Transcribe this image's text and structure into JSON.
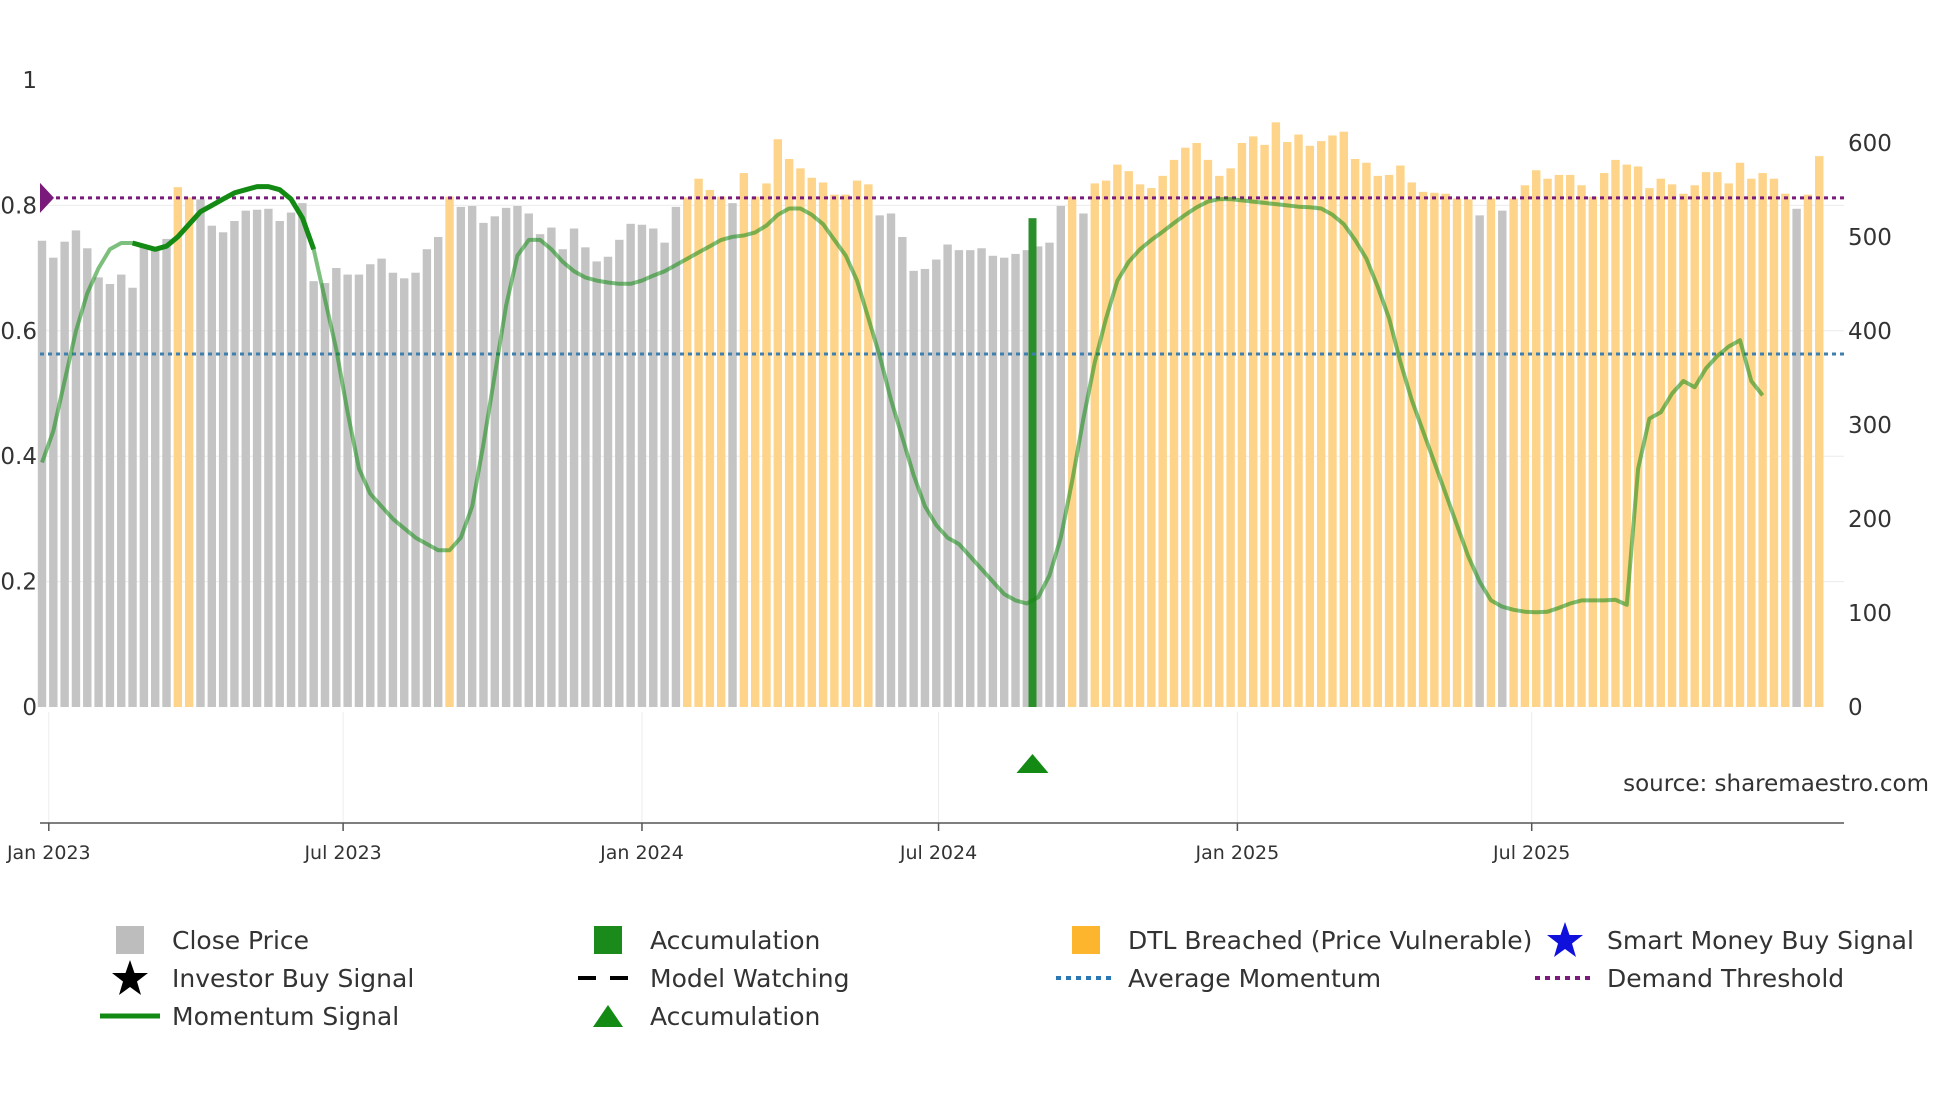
{
  "chart_data": {
    "type": "bar",
    "source_label": "source: sharemaestro.com",
    "x_ticks": [
      {
        "label": "Jan 2023",
        "t": 0.6
      },
      {
        "label": "Jul 2023",
        "t": 26.6
      },
      {
        "label": "Jan 2024",
        "t": 53.0
      },
      {
        "label": "Jul 2024",
        "t": 79.2
      },
      {
        "label": "Jan 2025",
        "t": 105.6
      },
      {
        "label": "Jul 2025",
        "t": 131.6
      }
    ],
    "left_axis": {
      "ticks": [
        "0",
        "0.2",
        "0.4",
        "0.6",
        "0.8",
        "1"
      ],
      "ylim": [
        0,
        1
      ]
    },
    "right_axis": {
      "ticks": [
        "0",
        "100",
        "200",
        "300",
        "400",
        "500",
        "600"
      ],
      "ylim": [
        0,
        667
      ]
    },
    "average_momentum": 0.563,
    "demand_threshold": 0.812,
    "close_price": [
      [
        496,
        "g"
      ],
      [
        478,
        "g"
      ],
      [
        495,
        "g"
      ],
      [
        507,
        "g"
      ],
      [
        488,
        "g"
      ],
      [
        457,
        "g"
      ],
      [
        450,
        "g"
      ],
      [
        460,
        "g"
      ],
      [
        446,
        "g"
      ],
      [
        490,
        "g"
      ],
      [
        487,
        "g"
      ],
      [
        498,
        "g"
      ],
      [
        553,
        "o"
      ],
      [
        542,
        "o"
      ],
      [
        540,
        "g"
      ],
      [
        512,
        "g"
      ],
      [
        505,
        "g"
      ],
      [
        517,
        "g"
      ],
      [
        528,
        "g"
      ],
      [
        529,
        "g"
      ],
      [
        530,
        "g"
      ],
      [
        517,
        "g"
      ],
      [
        526,
        "g"
      ],
      [
        536,
        "g"
      ],
      [
        453,
        "g"
      ],
      [
        451,
        "g"
      ],
      [
        467,
        "g"
      ],
      [
        460,
        "g"
      ],
      [
        460,
        "g"
      ],
      [
        471,
        "g"
      ],
      [
        477,
        "g"
      ],
      [
        462,
        "g"
      ],
      [
        456,
        "g"
      ],
      [
        462,
        "g"
      ],
      [
        487,
        "g"
      ],
      [
        500,
        "g"
      ],
      [
        543,
        "o"
      ],
      [
        532,
        "g"
      ],
      [
        533,
        "g"
      ],
      [
        515,
        "g"
      ],
      [
        522,
        "g"
      ],
      [
        531,
        "g"
      ],
      [
        533,
        "g"
      ],
      [
        525,
        "g"
      ],
      [
        503,
        "g"
      ],
      [
        510,
        "g"
      ],
      [
        487,
        "g"
      ],
      [
        509,
        "g"
      ],
      [
        489,
        "g"
      ],
      [
        474,
        "g"
      ],
      [
        479,
        "g"
      ],
      [
        497,
        "g"
      ],
      [
        514,
        "g"
      ],
      [
        513,
        "g"
      ],
      [
        509,
        "g"
      ],
      [
        494,
        "g"
      ],
      [
        532,
        "g"
      ],
      [
        542,
        "o"
      ],
      [
        562,
        "o"
      ],
      [
        550,
        "o"
      ],
      [
        543,
        "o"
      ],
      [
        536,
        "g"
      ],
      [
        568,
        "o"
      ],
      [
        543,
        "o"
      ],
      [
        557,
        "o"
      ],
      [
        604,
        "o"
      ],
      [
        583,
        "o"
      ],
      [
        573,
        "o"
      ],
      [
        563,
        "o"
      ],
      [
        558,
        "o"
      ],
      [
        545,
        "o"
      ],
      [
        545,
        "o"
      ],
      [
        560,
        "o"
      ],
      [
        556,
        "o"
      ],
      [
        523,
        "g"
      ],
      [
        525,
        "g"
      ],
      [
        500,
        "g"
      ],
      [
        464,
        "g"
      ],
      [
        466,
        "g"
      ],
      [
        476,
        "g"
      ],
      [
        492,
        "g"
      ],
      [
        486,
        "g"
      ],
      [
        486,
        "g"
      ],
      [
        488,
        "g"
      ],
      [
        480,
        "g"
      ],
      [
        478,
        "g"
      ],
      [
        482,
        "g"
      ],
      [
        486,
        "g"
      ],
      [
        490,
        "g"
      ],
      [
        494,
        "g"
      ],
      [
        533,
        "g"
      ],
      [
        543,
        "o"
      ],
      [
        525,
        "g"
      ],
      [
        557,
        "o"
      ],
      [
        560,
        "o"
      ],
      [
        577,
        "o"
      ],
      [
        570,
        "o"
      ],
      [
        556,
        "o"
      ],
      [
        552,
        "o"
      ],
      [
        565,
        "o"
      ],
      [
        582,
        "o"
      ],
      [
        595,
        "o"
      ],
      [
        600,
        "o"
      ],
      [
        582,
        "o"
      ],
      [
        565,
        "o"
      ],
      [
        573,
        "o"
      ],
      [
        600,
        "o"
      ],
      [
        607,
        "o"
      ],
      [
        598,
        "o"
      ],
      [
        622,
        "o"
      ],
      [
        601,
        "o"
      ],
      [
        609,
        "o"
      ],
      [
        597,
        "o"
      ],
      [
        602,
        "o"
      ],
      [
        608,
        "o"
      ],
      [
        612,
        "o"
      ],
      [
        583,
        "o"
      ],
      [
        579,
        "o"
      ],
      [
        565,
        "o"
      ],
      [
        566,
        "o"
      ],
      [
        576,
        "o"
      ],
      [
        558,
        "o"
      ],
      [
        548,
        "o"
      ],
      [
        547,
        "o"
      ],
      [
        546,
        "o"
      ],
      [
        541,
        "o"
      ],
      [
        540,
        "o"
      ],
      [
        523,
        "g"
      ],
      [
        541,
        "o"
      ],
      [
        528,
        "g"
      ],
      [
        541,
        "o"
      ],
      [
        555,
        "o"
      ],
      [
        571,
        "o"
      ],
      [
        562,
        "o"
      ],
      [
        566,
        "o"
      ],
      [
        566,
        "o"
      ],
      [
        555,
        "o"
      ],
      [
        543,
        "o"
      ],
      [
        568,
        "o"
      ],
      [
        582,
        "o"
      ],
      [
        577,
        "o"
      ],
      [
        575,
        "o"
      ],
      [
        552,
        "o"
      ],
      [
        562,
        "o"
      ],
      [
        556,
        "o"
      ],
      [
        546,
        "o"
      ],
      [
        555,
        "o"
      ],
      [
        569,
        "o"
      ],
      [
        569,
        "o"
      ],
      [
        557,
        "o"
      ],
      [
        579,
        "o"
      ],
      [
        562,
        "o"
      ],
      [
        568,
        "o"
      ],
      [
        562,
        "o"
      ],
      [
        546,
        "o"
      ],
      [
        530,
        "g"
      ],
      [
        545,
        "o"
      ],
      [
        586,
        "o"
      ]
    ],
    "accumulation_bar": {
      "t": 87.5,
      "value": 520
    },
    "momentum": [
      [
        0,
        0.39
      ],
      [
        1,
        0.44
      ],
      [
        2,
        0.52
      ],
      [
        3,
        0.6
      ],
      [
        4,
        0.66
      ],
      [
        5,
        0.7
      ],
      [
        6,
        0.73
      ],
      [
        7,
        0.74
      ],
      [
        8,
        0.74
      ],
      [
        9,
        0.735
      ],
      [
        10,
        0.73
      ],
      [
        11,
        0.735
      ],
      [
        12,
        0.75
      ],
      [
        13,
        0.77
      ],
      [
        14,
        0.79
      ],
      [
        15,
        0.8
      ],
      [
        16,
        0.81
      ],
      [
        17,
        0.82
      ],
      [
        18,
        0.825
      ],
      [
        19,
        0.83
      ],
      [
        20,
        0.83
      ],
      [
        21,
        0.825
      ],
      [
        22,
        0.81
      ],
      [
        23,
        0.78
      ],
      [
        24,
        0.73
      ],
      [
        25,
        0.65
      ],
      [
        26,
        0.57
      ],
      [
        27,
        0.47
      ],
      [
        28,
        0.38
      ],
      [
        29,
        0.34
      ],
      [
        30,
        0.32
      ],
      [
        31,
        0.3
      ],
      [
        32,
        0.285
      ],
      [
        33,
        0.27
      ],
      [
        34,
        0.26
      ],
      [
        35,
        0.25
      ],
      [
        36,
        0.25
      ],
      [
        37,
        0.27
      ],
      [
        38,
        0.32
      ],
      [
        39,
        0.42
      ],
      [
        40,
        0.53
      ],
      [
        41,
        0.64
      ],
      [
        42,
        0.72
      ],
      [
        43,
        0.745
      ],
      [
        44,
        0.745
      ],
      [
        45,
        0.73
      ],
      [
        46,
        0.71
      ],
      [
        47,
        0.695
      ],
      [
        48,
        0.685
      ],
      [
        49,
        0.68
      ],
      [
        50,
        0.677
      ],
      [
        51,
        0.675
      ],
      [
        52,
        0.675
      ],
      [
        53,
        0.68
      ],
      [
        54,
        0.688
      ],
      [
        55,
        0.695
      ],
      [
        56,
        0.705
      ],
      [
        57,
        0.715
      ],
      [
        58,
        0.725
      ],
      [
        59,
        0.735
      ],
      [
        60,
        0.745
      ],
      [
        61,
        0.75
      ],
      [
        62,
        0.752
      ],
      [
        63,
        0.757
      ],
      [
        64,
        0.768
      ],
      [
        65,
        0.785
      ],
      [
        66,
        0.795
      ],
      [
        67,
        0.795
      ],
      [
        68,
        0.785
      ],
      [
        69,
        0.77
      ],
      [
        70,
        0.745
      ],
      [
        71,
        0.72
      ],
      [
        72,
        0.68
      ],
      [
        73,
        0.62
      ],
      [
        74,
        0.56
      ],
      [
        75,
        0.49
      ],
      [
        76,
        0.43
      ],
      [
        77,
        0.37
      ],
      [
        78,
        0.32
      ],
      [
        79,
        0.29
      ],
      [
        80,
        0.27
      ],
      [
        81,
        0.26
      ],
      [
        82,
        0.24
      ],
      [
        83,
        0.22
      ],
      [
        84,
        0.2
      ],
      [
        85,
        0.18
      ],
      [
        86,
        0.17
      ],
      [
        87,
        0.165
      ],
      [
        88,
        0.175
      ],
      [
        89,
        0.21
      ],
      [
        90,
        0.27
      ],
      [
        91,
        0.36
      ],
      [
        92,
        0.46
      ],
      [
        93,
        0.55
      ],
      [
        94,
        0.62
      ],
      [
        95,
        0.68
      ],
      [
        96,
        0.71
      ],
      [
        97,
        0.73
      ],
      [
        98,
        0.745
      ],
      [
        99,
        0.758
      ],
      [
        100,
        0.772
      ],
      [
        101,
        0.785
      ],
      [
        102,
        0.797
      ],
      [
        103,
        0.806
      ],
      [
        104,
        0.81
      ],
      [
        105,
        0.81
      ],
      [
        106,
        0.808
      ],
      [
        107,
        0.806
      ],
      [
        108,
        0.804
      ],
      [
        109,
        0.802
      ],
      [
        110,
        0.8
      ],
      [
        111,
        0.798
      ],
      [
        112,
        0.797
      ],
      [
        113,
        0.795
      ],
      [
        114,
        0.785
      ],
      [
        115,
        0.77
      ],
      [
        116,
        0.745
      ],
      [
        117,
        0.715
      ],
      [
        118,
        0.67
      ],
      [
        119,
        0.62
      ],
      [
        120,
        0.55
      ],
      [
        121,
        0.49
      ],
      [
        122,
        0.44
      ],
      [
        123,
        0.39
      ],
      [
        124,
        0.34
      ],
      [
        125,
        0.29
      ],
      [
        126,
        0.24
      ],
      [
        127,
        0.2
      ],
      [
        128,
        0.17
      ],
      [
        129,
        0.16
      ],
      [
        130,
        0.155
      ],
      [
        131,
        0.152
      ],
      [
        132,
        0.151
      ],
      [
        133,
        0.152
      ],
      [
        134,
        0.158
      ],
      [
        135,
        0.165
      ],
      [
        136,
        0.17
      ],
      [
        137,
        0.17
      ],
      [
        138,
        0.17
      ],
      [
        139,
        0.171
      ],
      [
        140,
        0.163
      ],
      [
        141,
        0.38
      ],
      [
        142,
        0.46
      ],
      [
        143,
        0.47
      ],
      [
        144,
        0.5
      ],
      [
        145,
        0.52
      ],
      [
        146,
        0.51
      ],
      [
        147,
        0.54
      ],
      [
        148,
        0.56
      ],
      [
        149,
        0.575
      ],
      [
        150,
        0.585
      ],
      [
        151,
        0.52
      ],
      [
        152,
        0.497
      ]
    ],
    "momentum_highlight": [
      [
        8,
        24
      ]
    ],
    "accumulation_marker": {
      "t": 87.5
    },
    "threshold_marker_label": "Demand Threshold marker",
    "legend": [
      {
        "label": "Close Price",
        "symbol": "square",
        "color": "#bdbdbd"
      },
      {
        "label": "Investor Buy Signal",
        "symbol": "star",
        "color": "#000000"
      },
      {
        "label": "Momentum Signal",
        "symbol": "line",
        "color": "#138a13"
      },
      {
        "label": "Accumulation",
        "symbol": "square",
        "color": "#1a8a1a"
      },
      {
        "label": "Model Watching",
        "symbol": "dash",
        "color": "#000000"
      },
      {
        "label": "Accumulation",
        "symbol": "triangle",
        "color": "#138a13"
      },
      {
        "label": "DTL Breached (Price Vulnerable)",
        "symbol": "square",
        "color": "#fdb52e"
      },
      {
        "label": "Average Momentum",
        "symbol": "dots",
        "color": "#2a77b4"
      },
      {
        "label": "Smart Money Buy Signal",
        "symbol": "star",
        "color": "#1010dd"
      },
      {
        "label": "Demand Threshold",
        "symbol": "dots",
        "color": "#7a1a7a"
      }
    ],
    "colors": {
      "close": "#c4c4c4",
      "dtl": "#fdd48a",
      "accumulation": "#2a8f2a",
      "momentum": "#138a13",
      "avg": "#3f7fae",
      "threshold": "#7a1a7a"
    }
  }
}
